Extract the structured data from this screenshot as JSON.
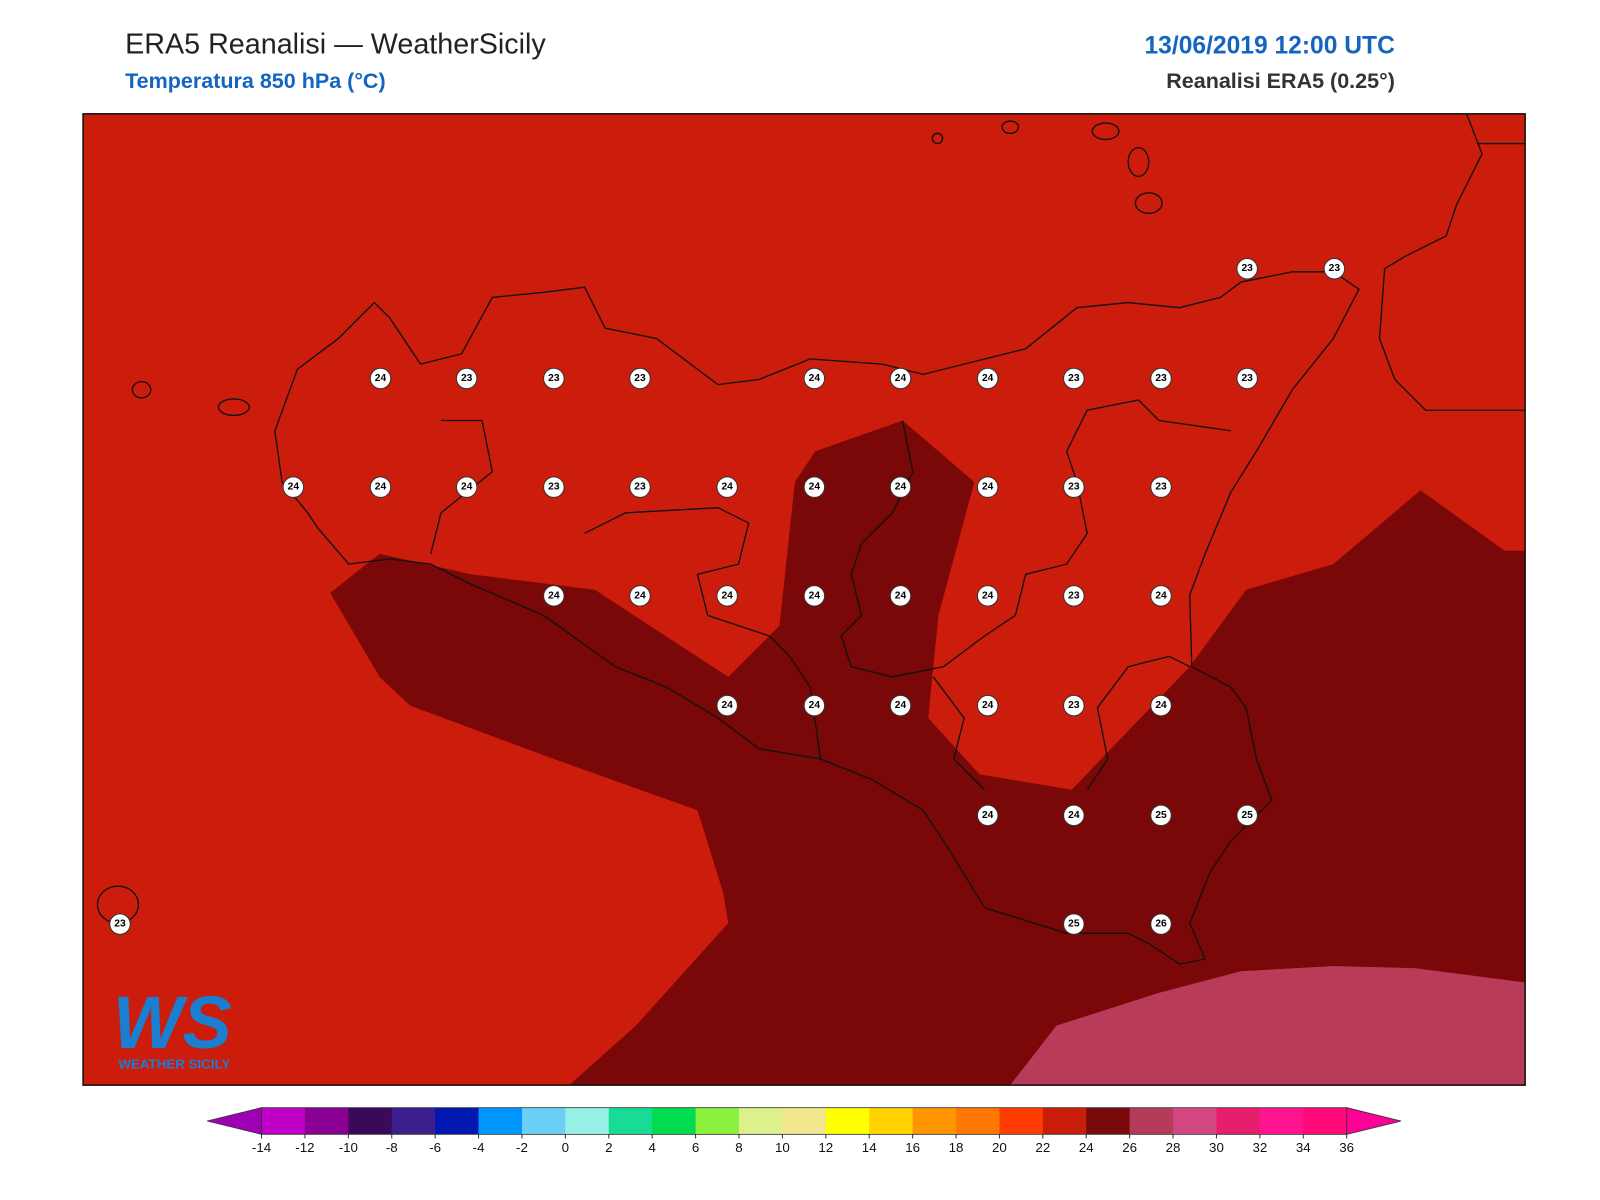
{
  "header": {
    "title": "ERA5 Reanalisi — WeatherSicily",
    "subtitle": "Temperatura 850 hPa (°C)",
    "date": "13/06/2019 12:00 UTC",
    "source": "Reanalisi ERA5 (0.25°)"
  },
  "stations": [
    23,
    23,
    24,
    23,
    23,
    23,
    24,
    24,
    24,
    23,
    23,
    23,
    24,
    24,
    24,
    23,
    23,
    24,
    24,
    24,
    24,
    23,
    23,
    24,
    24,
    24,
    24,
    24,
    24,
    23,
    24,
    24,
    24,
    24,
    24,
    23,
    24,
    24,
    24,
    25,
    25,
    23,
    25,
    26
  ],
  "colorbar": {
    "ticks": [
      -14,
      -12,
      -10,
      -8,
      -6,
      -4,
      -2,
      0,
      2,
      4,
      6,
      8,
      10,
      12,
      14,
      16,
      18,
      20,
      22,
      24,
      26,
      28,
      30,
      32,
      34,
      36
    ],
    "colors": [
      "#c000c8",
      "#8a0094",
      "#3a0a5a",
      "#3c1e8c",
      "#0018b0",
      "#0096ff",
      "#6ccff6",
      "#96f0e6",
      "#18dc96",
      "#00dc50",
      "#8cf03c",
      "#dcf08c",
      "#f0e68c",
      "#ffff00",
      "#ffd200",
      "#ff9600",
      "#ff7800",
      "#ff3c00",
      "#c81e0a",
      "#780a0a",
      "#b43c5a",
      "#d24682",
      "#e61e6e",
      "#ff1490",
      "#ff0a78"
    ],
    "extend_colors": [
      "#a000b4",
      "#ff0096"
    ]
  },
  "logo": {
    "mark": "WS",
    "name": "WEATHER SICILY"
  }
}
